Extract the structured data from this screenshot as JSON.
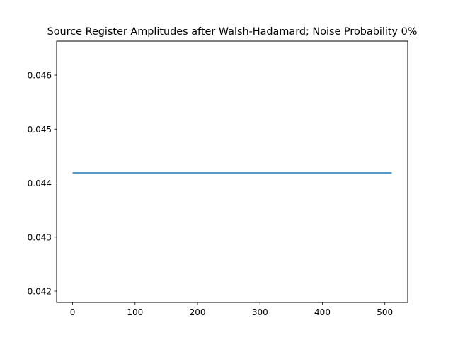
{
  "chart_data": {
    "type": "line",
    "title": "Source Register Amplitudes after Walsh-Hadamard; Noise Probability 0%",
    "xlabel": "",
    "ylabel": "",
    "xlim": [
      -25.55,
      536.55
    ],
    "ylim": [
      0.04179,
      0.04663
    ],
    "xticks": [
      0,
      100,
      200,
      300,
      400,
      500
    ],
    "xtick_labels": [
      "0",
      "100",
      "200",
      "300",
      "400",
      "500"
    ],
    "yticks": [
      0.042,
      0.043,
      0.044,
      0.045,
      0.046
    ],
    "ytick_labels": [
      "0.042",
      "0.043",
      "0.044",
      "0.045",
      "0.046"
    ],
    "grid": false,
    "series": [
      {
        "color": "#1f77b4",
        "x": [
          0,
          511
        ],
        "y": [
          0.04419,
          0.04419
        ]
      }
    ]
  }
}
